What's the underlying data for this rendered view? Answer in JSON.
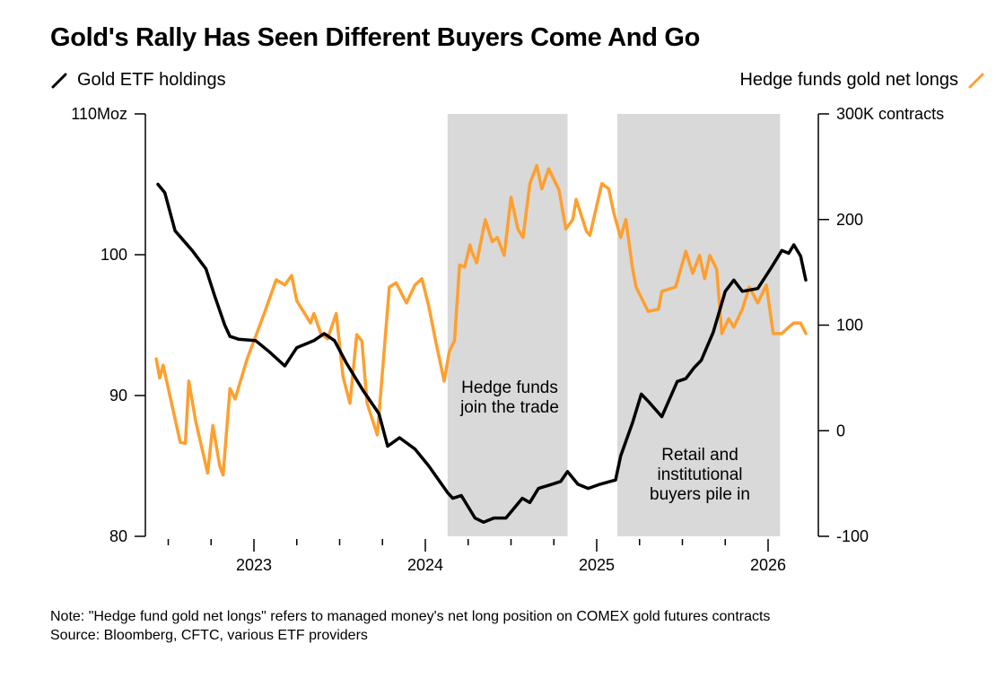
{
  "title": "Gold's Rally Has Seen Different Buyers Come And Go",
  "legend": {
    "left": {
      "label": "Gold ETF holdings",
      "color": "#000000",
      "icon": "line-swatch-icon"
    },
    "right": {
      "label": "Hedge funds gold net longs",
      "color": "#ff9f2e",
      "icon": "line-swatch-icon"
    }
  },
  "footnote": {
    "note": "Note: \"Hedge fund gold net longs\" refers to managed money's net long position on COMEX gold futures contracts",
    "source": "Source: Bloomberg, CFTC, various ETF providers"
  },
  "chart_data": {
    "type": "line",
    "title": "Gold's Rally Has Seen Different Buyers Come And Go",
    "xlabel": "",
    "x_ticks": [
      {
        "value": 2023,
        "label": "2023"
      },
      {
        "value": 2024,
        "label": "2024"
      },
      {
        "value": 2025,
        "label": "2025"
      },
      {
        "value": 2026,
        "label": "2026"
      }
    ],
    "x_minor_ticks": [
      2022.5,
      2022.75,
      2023.25,
      2023.5,
      2023.75,
      2024.25,
      2024.5,
      2024.75,
      2025.25,
      2025.5,
      2025.75
    ],
    "xlim": [
      2022.35,
      2026.35
    ],
    "y_left": {
      "label": "Moz",
      "ylim": [
        80,
        110
      ],
      "ticks": [
        {
          "value": 110,
          "label": "110Moz"
        },
        {
          "value": 100,
          "label": "100"
        },
        {
          "value": 90,
          "label": "90"
        },
        {
          "value": 80,
          "label": "80"
        }
      ]
    },
    "y_right": {
      "label": "K contracts",
      "ylim": [
        -100,
        300
      ],
      "ticks": [
        {
          "value": 300,
          "label": "300K contracts"
        },
        {
          "value": 200,
          "label": "200"
        },
        {
          "value": 100,
          "label": "100"
        },
        {
          "value": 0,
          "label": "0"
        },
        {
          "value": -100,
          "label": "-100"
        }
      ]
    },
    "shaded_periods": [
      {
        "start": 2024.13,
        "end": 2024.83,
        "label_lines": [
          "Hedge funds",
          "join the trade"
        ]
      },
      {
        "start": 2025.12,
        "end": 2026.07,
        "label_lines": [
          "Retail and",
          "institutional",
          "buyers pile in"
        ]
      }
    ],
    "series": [
      {
        "name": "Gold ETF holdings",
        "axis": "left",
        "color": "#000000",
        "x": [
          2022.44,
          2022.48,
          2022.54,
          2022.64,
          2022.72,
          2022.77,
          2022.83,
          2022.86,
          2022.91,
          2023.01,
          2023.09,
          2023.18,
          2023.25,
          2023.35,
          2023.41,
          2023.47,
          2023.54,
          2023.64,
          2023.73,
          2023.78,
          2023.85,
          2023.94,
          2024.02,
          2024.13,
          2024.16,
          2024.21,
          2024.29,
          2024.34,
          2024.4,
          2024.47,
          2024.566,
          2024.61,
          2024.66,
          2024.74,
          2024.79,
          2024.83,
          2024.89,
          2024.95,
          2025.02,
          2025.11,
          2025.14,
          2025.21,
          2025.26,
          2025.3,
          2025.38,
          2025.47,
          2025.52,
          2025.57,
          2025.61,
          2025.68,
          2025.75,
          2025.8,
          2025.85,
          2025.94,
          2026.02,
          2026.08,
          2026.12,
          2026.15,
          2026.19,
          2026.22
        ],
        "values": [
          105.0,
          104.4,
          101.7,
          100.3,
          99.0,
          97.1,
          95.0,
          94.2,
          94.0,
          93.9,
          93.1,
          92.1,
          93.4,
          93.9,
          94.4,
          93.9,
          92.3,
          90.3,
          88.7,
          86.4,
          87.0,
          86.2,
          85.0,
          83.1,
          82.7,
          82.9,
          81.3,
          81.0,
          81.3,
          81.3,
          82.7,
          82.4,
          83.4,
          83.7,
          83.9,
          84.6,
          83.7,
          83.4,
          83.7,
          84.0,
          85.7,
          88.1,
          90.1,
          89.6,
          88.5,
          91.0,
          91.2,
          92.0,
          92.5,
          94.5,
          97.4,
          98.2,
          97.4,
          97.6,
          99.1,
          100.3,
          100.1,
          100.7,
          99.9,
          98.2
        ]
      },
      {
        "name": "Hedge funds gold net longs",
        "axis": "right",
        "color": "#ff9f2e",
        "x": [
          2022.43,
          2022.45,
          2022.47,
          2022.57,
          2022.6,
          2022.62,
          2022.66,
          2022.73,
          2022.76,
          2022.8,
          2022.82,
          2022.86,
          2022.89,
          2022.96,
          2023.06,
          2023.13,
          2023.18,
          2023.22,
          2023.25,
          2023.33,
          2023.35,
          2023.39,
          2023.43,
          2023.48,
          2023.52,
          2023.56,
          2023.6,
          2023.63,
          2023.66,
          2023.72,
          2023.79,
          2023.83,
          2023.89,
          2023.94,
          2023.98,
          2024.02,
          2024.06,
          2024.11,
          2024.14,
          2024.17,
          2024.2,
          2024.23,
          2024.26,
          2024.27,
          2024.3,
          2024.35,
          2024.39,
          2024.42,
          2024.46,
          2024.5,
          2024.54,
          2024.57,
          2024.61,
          2024.65,
          2024.68,
          2024.72,
          2024.78,
          2024.82,
          2024.86,
          2024.88,
          2024.94,
          2024.96,
          2025.03,
          2025.07,
          2025.1,
          2025.14,
          2025.17,
          2025.21,
          2025.23,
          2025.3,
          2025.36,
          2025.38,
          2025.42,
          2025.46,
          2025.52,
          2025.56,
          2025.6,
          2025.63,
          2025.66,
          2025.7,
          2025.73,
          2025.77,
          2025.8,
          2025.85,
          2025.89,
          2025.94,
          2025.99,
          2026.03,
          2026.08,
          2026.12,
          2026.15,
          2026.19,
          2026.22
        ],
        "values": [
          68,
          50,
          62,
          -11,
          -12,
          47,
          9,
          -40,
          5,
          -33,
          -42,
          40,
          30,
          68,
          111,
          143,
          138,
          147,
          123,
          102,
          111,
          92,
          87,
          111,
          51,
          26,
          91,
          85,
          26,
          -4,
          136,
          140,
          121,
          138,
          144,
          118,
          85,
          47,
          75,
          85,
          157,
          155,
          176,
          170,
          159,
          200,
          179,
          183,
          166,
          221,
          191,
          183,
          234,
          251,
          229,
          248,
          228,
          191,
          200,
          219,
          189,
          185,
          234,
          229,
          206,
          183,
          200,
          153,
          136,
          113,
          115,
          132,
          134,
          136,
          170,
          149,
          166,
          144,
          166,
          153,
          92,
          106,
          98,
          115,
          136,
          121,
          138,
          92,
          92,
          98,
          102,
          102,
          92
        ]
      }
    ],
    "grid": false,
    "legend_position": "top"
  }
}
